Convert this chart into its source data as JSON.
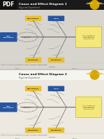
{
  "title1": "Cause and Effect Diagram 1",
  "subtitle1": "Registrar Department",
  "title2": "Cause and Effect Diagram 2",
  "subtitle2": "Registrar Department",
  "header1_bg": "#1a1a1a",
  "header2_bg": "#f5f5f0",
  "body_bg1": "#d8d5ce",
  "body_bg2": "#ede9e0",
  "cat_yellow": "#e8c030",
  "cat_blue": "#2855a0",
  "cat_green": "#2a7a50",
  "effect_box_bg": "#f5e87a",
  "effect_box_ec": "#c8b800",
  "spine_color": "#555555",
  "branch_color": "#777777",
  "sub_branch_color": "#999999",
  "note_bg": "#f0e88a",
  "note_ec": "#c0aa00",
  "footer_bg": "#f0f0ea",
  "title2_color": "#222222",
  "title2_italic": true,
  "logo_circle": "#d4a800",
  "logo_wing": "#e8c030",
  "pdf_bg": "#111111",
  "pdf_text": "#ffffff",
  "footer_line": "#ccccaa"
}
